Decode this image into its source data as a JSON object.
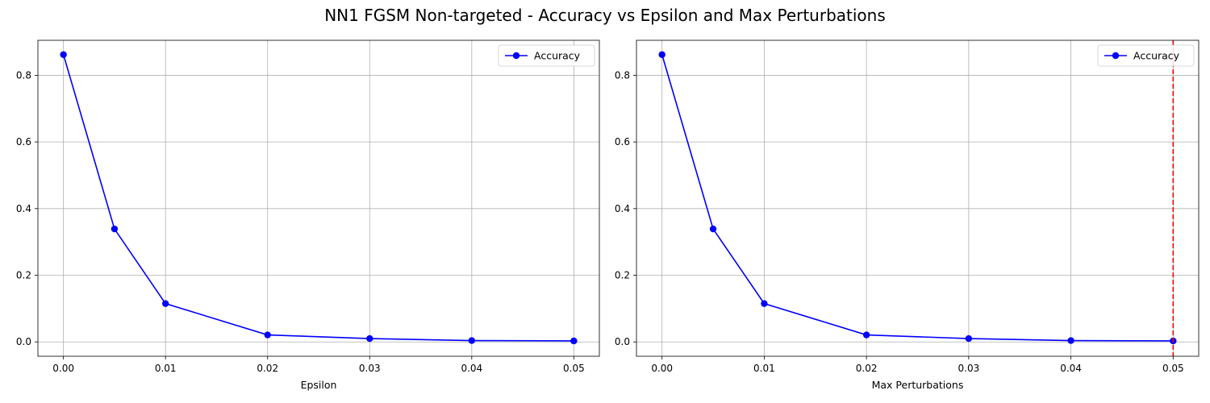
{
  "title": "NN1 FGSM Non-targeted - Accuracy vs Epsilon and Max Perturbations",
  "chart_data": [
    {
      "type": "line",
      "title": "",
      "xlabel": "Epsilon",
      "ylabel": "",
      "x": [
        0.0,
        0.005,
        0.01,
        0.02,
        0.03,
        0.04,
        0.05
      ],
      "series": [
        {
          "name": "Accuracy",
          "values": [
            0.862,
            0.339,
            0.115,
            0.021,
            0.01,
            0.004,
            0.003
          ],
          "color": "#0000ff",
          "marker": "circle"
        }
      ],
      "xlim": [
        -0.0025,
        0.0525
      ],
      "ylim": [
        -0.043,
        0.905
      ],
      "xticks": [
        0.0,
        0.01,
        0.02,
        0.03,
        0.04,
        0.05
      ],
      "xtick_labels": [
        "0.00",
        "0.01",
        "0.02",
        "0.03",
        "0.04",
        "0.05"
      ],
      "yticks": [
        0.0,
        0.2,
        0.4,
        0.6,
        0.8
      ],
      "ytick_labels": [
        "0.0",
        "0.2",
        "0.4",
        "0.6",
        "0.8"
      ],
      "grid": true,
      "legend": "top-right"
    },
    {
      "type": "line",
      "title": "",
      "xlabel": "Max Perturbations",
      "ylabel": "",
      "x": [
        0.0,
        0.005,
        0.01,
        0.02,
        0.03,
        0.04,
        0.05
      ],
      "series": [
        {
          "name": "Accuracy",
          "values": [
            0.862,
            0.339,
            0.115,
            0.021,
            0.01,
            0.004,
            0.003
          ],
          "color": "#0000ff",
          "marker": "circle"
        }
      ],
      "xlim": [
        -0.0025,
        0.0525
      ],
      "ylim": [
        -0.043,
        0.905
      ],
      "xticks": [
        0.0,
        0.01,
        0.02,
        0.03,
        0.04,
        0.05
      ],
      "xtick_labels": [
        "0.00",
        "0.01",
        "0.02",
        "0.03",
        "0.04",
        "0.05"
      ],
      "yticks": [
        0.0,
        0.2,
        0.4,
        0.6,
        0.8
      ],
      "ytick_labels": [
        "0.0",
        "0.2",
        "0.4",
        "0.6",
        "0.8"
      ],
      "grid": true,
      "legend": "top-right",
      "vline": {
        "x": 0.05,
        "color": "#ff0000",
        "style": "dashed"
      }
    }
  ]
}
